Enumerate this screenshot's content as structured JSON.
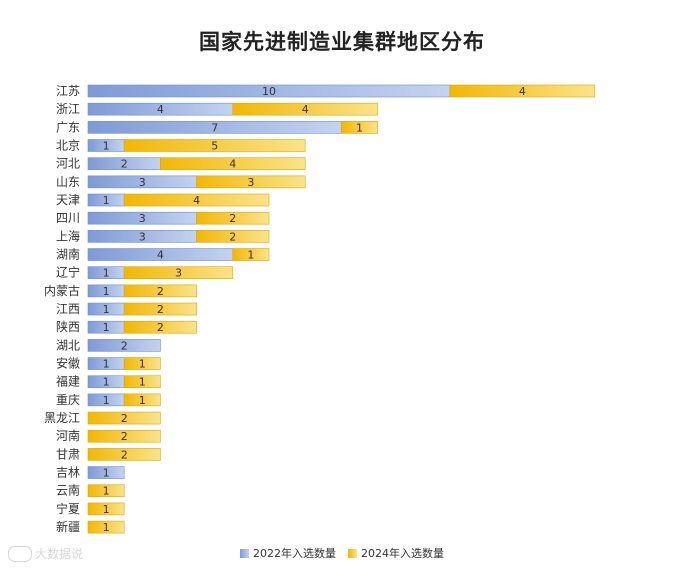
{
  "chart_data": {
    "type": "bar",
    "orientation": "horizontal",
    "stacked": true,
    "title": "国家先进制造业集群地区分布",
    "categories": [
      "江苏",
      "浙江",
      "广东",
      "北京",
      "河北",
      "山东",
      "天津",
      "四川",
      "上海",
      "湖南",
      "辽宁",
      "内蒙古",
      "江西",
      "陕西",
      "湖北",
      "安徽",
      "福建",
      "重庆",
      "黑龙江",
      "河南",
      "甘肃",
      "吉林",
      "云南",
      "宁夏",
      "新疆"
    ],
    "series": [
      {
        "name": "2022年入选数量",
        "color": "#8eaadc",
        "values": [
          10,
          4,
          7,
          1,
          2,
          3,
          1,
          3,
          3,
          4,
          1,
          1,
          1,
          1,
          2,
          1,
          1,
          1,
          0,
          0,
          0,
          1,
          0,
          0,
          0
        ]
      },
      {
        "name": "2024年入选数量",
        "color": "#f5c518",
        "values": [
          4,
          4,
          1,
          5,
          4,
          3,
          4,
          2,
          2,
          1,
          3,
          2,
          2,
          2,
          0,
          1,
          1,
          1,
          2,
          2,
          2,
          0,
          1,
          1,
          1
        ]
      }
    ],
    "xlim": [
      0,
      14.5
    ],
    "legend_position": "bottom-center"
  },
  "watermark": "大数据说"
}
